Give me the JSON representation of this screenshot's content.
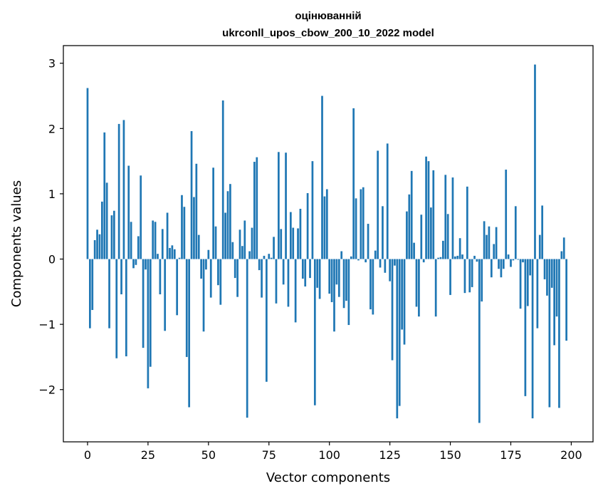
{
  "chart_data": {
    "type": "bar",
    "title_line1": "оцінюванній",
    "title_line2": "ukrconll_upos_cbow_200_10_2022 model",
    "xlabel": "Vector components",
    "ylabel": "Components values",
    "xlim": [
      -10,
      209
    ],
    "ylim": [
      -2.8,
      3.27
    ],
    "xticks": [
      0,
      25,
      50,
      75,
      100,
      125,
      150,
      175,
      200
    ],
    "xtick_labels": [
      "0",
      "25",
      "50",
      "75",
      "100",
      "125",
      "150",
      "175",
      "200"
    ],
    "yticks": [
      -2,
      -1,
      0,
      1,
      2,
      3
    ],
    "ytick_labels": [
      "−2",
      "−1",
      "0",
      "1",
      "2",
      "3"
    ],
    "grid": false,
    "legend": "none",
    "bar_color": "#1f77b4",
    "values": [
      2.62,
      -1.06,
      -0.78,
      0.29,
      0.45,
      0.38,
      0.88,
      1.94,
      1.17,
      -1.06,
      0.67,
      0.74,
      -1.52,
      2.07,
      -0.54,
      2.13,
      -1.49,
      1.43,
      0.57,
      -0.14,
      -0.09,
      0.35,
      1.28,
      -1.36,
      -0.16,
      -1.98,
      -1.65,
      0.59,
      0.57,
      0.08,
      -0.54,
      0.46,
      -1.1,
      0.71,
      0.17,
      0.21,
      0.15,
      -0.86,
      0.02,
      0.98,
      0.8,
      -1.5,
      -2.27,
      1.96,
      0.95,
      1.46,
      0.37,
      -0.3,
      -1.11,
      -0.16,
      0.14,
      -0.59,
      1.4,
      0.5,
      -0.4,
      -0.7,
      2.43,
      0.71,
      1.04,
      1.15,
      0.26,
      -0.29,
      -0.58,
      0.45,
      0.2,
      0.59,
      -2.43,
      0.12,
      0.48,
      1.49,
      1.56,
      -0.17,
      -0.59,
      0.05,
      -1.88,
      0.08,
      0.02,
      0.34,
      -0.68,
      1.64,
      0.46,
      -0.39,
      1.63,
      -0.73,
      0.72,
      0.48,
      -0.97,
      0.47,
      0.77,
      -0.3,
      -0.42,
      1.01,
      -0.29,
      1.5,
      -2.24,
      -0.44,
      -0.61,
      2.5,
      0.96,
      1.07,
      -0.53,
      -0.66,
      -1.11,
      -0.39,
      -0.58,
      0.12,
      -0.75,
      -0.64,
      -1.01,
      0.04,
      2.31,
      0.93,
      -0.02,
      1.07,
      1.1,
      -0.05,
      0.54,
      -0.77,
      -0.85,
      0.13,
      1.66,
      -0.13,
      0.81,
      -0.21,
      1.77,
      -0.34,
      -1.55,
      -0.1,
      -2.44,
      -2.25,
      -1.08,
      -1.31,
      0.73,
      0.99,
      1.35,
      0.25,
      -0.73,
      -0.88,
      0.68,
      -0.05,
      1.57,
      1.5,
      0.79,
      1.36,
      -0.88,
      0.02,
      0.03,
      0.28,
      1.29,
      0.69,
      -0.55,
      1.25,
      0.04,
      0.05,
      0.32,
      0.07,
      -0.52,
      1.11,
      -0.51,
      -0.43,
      0.05,
      -0.04,
      -2.51,
      -0.65,
      0.58,
      0.37,
      0.5,
      -0.28,
      0.23,
      0.49,
      -0.15,
      -0.28,
      -0.15,
      1.37,
      0.07,
      -0.12,
      -0.02,
      0.81,
      -0.01,
      -0.76,
      -0.05,
      -2.1,
      -0.72,
      -0.25,
      -2.44,
      2.98,
      -1.06,
      0.37,
      0.82,
      -0.31,
      -0.56,
      -2.27,
      -0.44,
      -1.32,
      -0.88,
      -2.28,
      0.12,
      0.33,
      -1.25
    ]
  }
}
